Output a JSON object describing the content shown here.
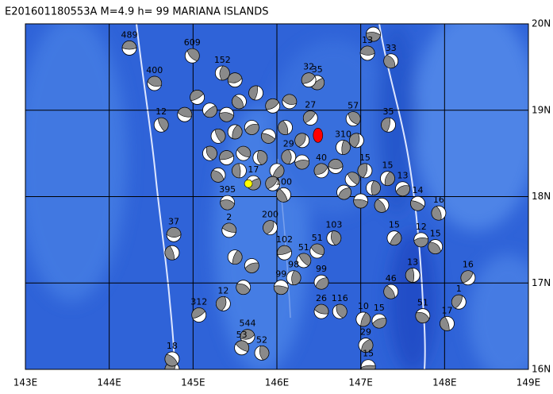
{
  "map": {
    "title": "E201601180553A M=4.9 h= 99 MARIANA ISLANDS",
    "xlim": [
      143,
      149
    ],
    "ylim": [
      16,
      20
    ],
    "xticks": [
      {
        "value": 143,
        "label": "143E"
      },
      {
        "value": 144,
        "label": "144E"
      },
      {
        "value": 145,
        "label": "145E"
      },
      {
        "value": 146,
        "label": "146E"
      },
      {
        "value": 147,
        "label": "147E"
      },
      {
        "value": 148,
        "label": "148E"
      },
      {
        "value": 149,
        "label": "149E"
      }
    ],
    "yticks": [
      {
        "value": 16,
        "label": "16N"
      },
      {
        "value": 17,
        "label": "17N"
      },
      {
        "value": 18,
        "label": "18N"
      },
      {
        "value": 19,
        "label": "19N"
      },
      {
        "value": 20,
        "label": "20N"
      }
    ],
    "grid": true,
    "events": [
      {
        "lon": 144.24,
        "lat": 19.72,
        "depth": 489
      },
      {
        "lon": 144.99,
        "lat": 19.63,
        "depth": 609
      },
      {
        "lon": 145.35,
        "lat": 19.43,
        "depth": 152
      },
      {
        "lon": 146.48,
        "lat": 19.32,
        "depth": 35
      },
      {
        "lon": 147.15,
        "lat": 19.88,
        "depth": 30
      },
      {
        "lon": 147.36,
        "lat": 19.57,
        "depth": 33
      },
      {
        "lon": 147.33,
        "lat": 18.83,
        "depth": 35
      },
      {
        "lon": 146.38,
        "lat": 19.35,
        "depth": 32
      },
      {
        "lon": 144.54,
        "lat": 19.31,
        "depth": 400
      },
      {
        "lon": 144.62,
        "lat": 18.83,
        "depth": 12
      },
      {
        "lon": 147.32,
        "lat": 18.21,
        "depth": 15
      },
      {
        "lon": 147.5,
        "lat": 18.09,
        "depth": 13
      },
      {
        "lon": 147.68,
        "lat": 17.92,
        "depth": 14
      },
      {
        "lon": 147.93,
        "lat": 17.81,
        "depth": 16
      },
      {
        "lon": 145.92,
        "lat": 17.64,
        "depth": 200
      },
      {
        "lon": 146.09,
        "lat": 17.35,
        "depth": 102
      },
      {
        "lon": 146.48,
        "lat": 17.37,
        "depth": 51
      },
      {
        "lon": 146.68,
        "lat": 17.52,
        "depth": 103
      },
      {
        "lon": 147.4,
        "lat": 17.52,
        "depth": 15
      },
      {
        "lon": 147.72,
        "lat": 17.5,
        "depth": 12
      },
      {
        "lon": 147.89,
        "lat": 17.42,
        "depth": 15
      },
      {
        "lon": 147.62,
        "lat": 17.09,
        "depth": 13
      },
      {
        "lon": 148.28,
        "lat": 17.06,
        "depth": 16
      },
      {
        "lon": 144.77,
        "lat": 17.56,
        "depth": 37
      },
      {
        "lon": 146.32,
        "lat": 17.26,
        "depth": 51
      },
      {
        "lon": 146.2,
        "lat": 17.06,
        "depth": 98
      },
      {
        "lon": 146.53,
        "lat": 17.01,
        "depth": 99
      },
      {
        "lon": 146.05,
        "lat": 16.95,
        "depth": 99
      },
      {
        "lon": 147.36,
        "lat": 16.9,
        "depth": 46
      },
      {
        "lon": 145.36,
        "lat": 16.76,
        "depth": 12
      },
      {
        "lon": 145.07,
        "lat": 16.63,
        "depth": 312
      },
      {
        "lon": 146.53,
        "lat": 16.67,
        "depth": 26
      },
      {
        "lon": 146.75,
        "lat": 16.67,
        "depth": 116
      },
      {
        "lon": 147.03,
        "lat": 16.58,
        "depth": 10
      },
      {
        "lon": 147.22,
        "lat": 16.56,
        "depth": 15
      },
      {
        "lon": 147.74,
        "lat": 16.62,
        "depth": 51
      },
      {
        "lon": 148.03,
        "lat": 16.53,
        "depth": 17
      },
      {
        "lon": 148.17,
        "lat": 16.78,
        "depth": 1
      },
      {
        "lon": 145.65,
        "lat": 16.38,
        "depth": 544
      },
      {
        "lon": 145.58,
        "lat": 16.25,
        "depth": 53
      },
      {
        "lon": 145.82,
        "lat": 16.19,
        "depth": 52
      },
      {
        "lon": 147.06,
        "lat": 16.28,
        "depth": 29
      },
      {
        "lon": 147.09,
        "lat": 16.03,
        "depth": 15
      },
      {
        "lon": 144.75,
        "lat": 16.12,
        "depth": 18
      },
      {
        "lon": 146.14,
        "lat": 18.46,
        "depth": 29
      },
      {
        "lon": 146.4,
        "lat": 18.91,
        "depth": 27
      },
      {
        "lon": 147.08,
        "lat": 19.66,
        "depth": 13
      },
      {
        "lon": 146.91,
        "lat": 18.9,
        "depth": 57
      },
      {
        "lon": 146.79,
        "lat": 18.57,
        "depth": 310
      },
      {
        "lon": 145.72,
        "lat": 18.16,
        "depth": 17
      },
      {
        "lon": 145.41,
        "lat": 17.93,
        "depth": 395
      },
      {
        "lon": 146.08,
        "lat": 18.02,
        "depth": 100
      },
      {
        "lon": 147.05,
        "lat": 18.3,
        "depth": 15
      },
      {
        "lon": 146.53,
        "lat": 18.3,
        "depth": 40
      },
      {
        "lon": 145.43,
        "lat": 17.61,
        "depth": 2
      }
    ],
    "unlabeled_events": [
      {
        "lon": 145.2,
        "lat": 19.0
      },
      {
        "lon": 145.4,
        "lat": 18.95
      },
      {
        "lon": 145.55,
        "lat": 19.1
      },
      {
        "lon": 145.75,
        "lat": 19.2
      },
      {
        "lon": 145.95,
        "lat": 19.05
      },
      {
        "lon": 146.15,
        "lat": 19.1
      },
      {
        "lon": 145.3,
        "lat": 18.7
      },
      {
        "lon": 145.5,
        "lat": 18.75
      },
      {
        "lon": 145.7,
        "lat": 18.8
      },
      {
        "lon": 145.9,
        "lat": 18.7
      },
      {
        "lon": 146.1,
        "lat": 18.8
      },
      {
        "lon": 146.3,
        "lat": 18.65
      },
      {
        "lon": 145.4,
        "lat": 18.45
      },
      {
        "lon": 145.6,
        "lat": 18.5
      },
      {
        "lon": 145.8,
        "lat": 18.45
      },
      {
        "lon": 146.0,
        "lat": 18.3
      },
      {
        "lon": 146.3,
        "lat": 18.4
      },
      {
        "lon": 145.3,
        "lat": 18.25
      },
      {
        "lon": 145.55,
        "lat": 18.3
      },
      {
        "lon": 145.95,
        "lat": 18.15
      },
      {
        "lon": 146.7,
        "lat": 18.35
      },
      {
        "lon": 146.9,
        "lat": 18.2
      },
      {
        "lon": 147.15,
        "lat": 18.1
      },
      {
        "lon": 146.8,
        "lat": 18.05
      },
      {
        "lon": 147.0,
        "lat": 17.95
      },
      {
        "lon": 147.25,
        "lat": 17.9
      },
      {
        "lon": 146.95,
        "lat": 18.65
      },
      {
        "lon": 145.05,
        "lat": 19.15
      },
      {
        "lon": 144.9,
        "lat": 18.95
      },
      {
        "lon": 145.2,
        "lat": 18.5
      },
      {
        "lon": 145.5,
        "lat": 17.3
      },
      {
        "lon": 145.7,
        "lat": 17.2
      },
      {
        "lon": 145.6,
        "lat": 16.95
      },
      {
        "lon": 144.75,
        "lat": 17.35
      },
      {
        "lon": 144.75,
        "lat": 16.0
      },
      {
        "lon": 145.5,
        "lat": 19.35
      }
    ],
    "highlight_events": [
      {
        "lon": 146.49,
        "lat": 18.71,
        "color": "#ff0000"
      },
      {
        "lon": 145.66,
        "lat": 18.15,
        "color": "#ffff00"
      }
    ]
  }
}
